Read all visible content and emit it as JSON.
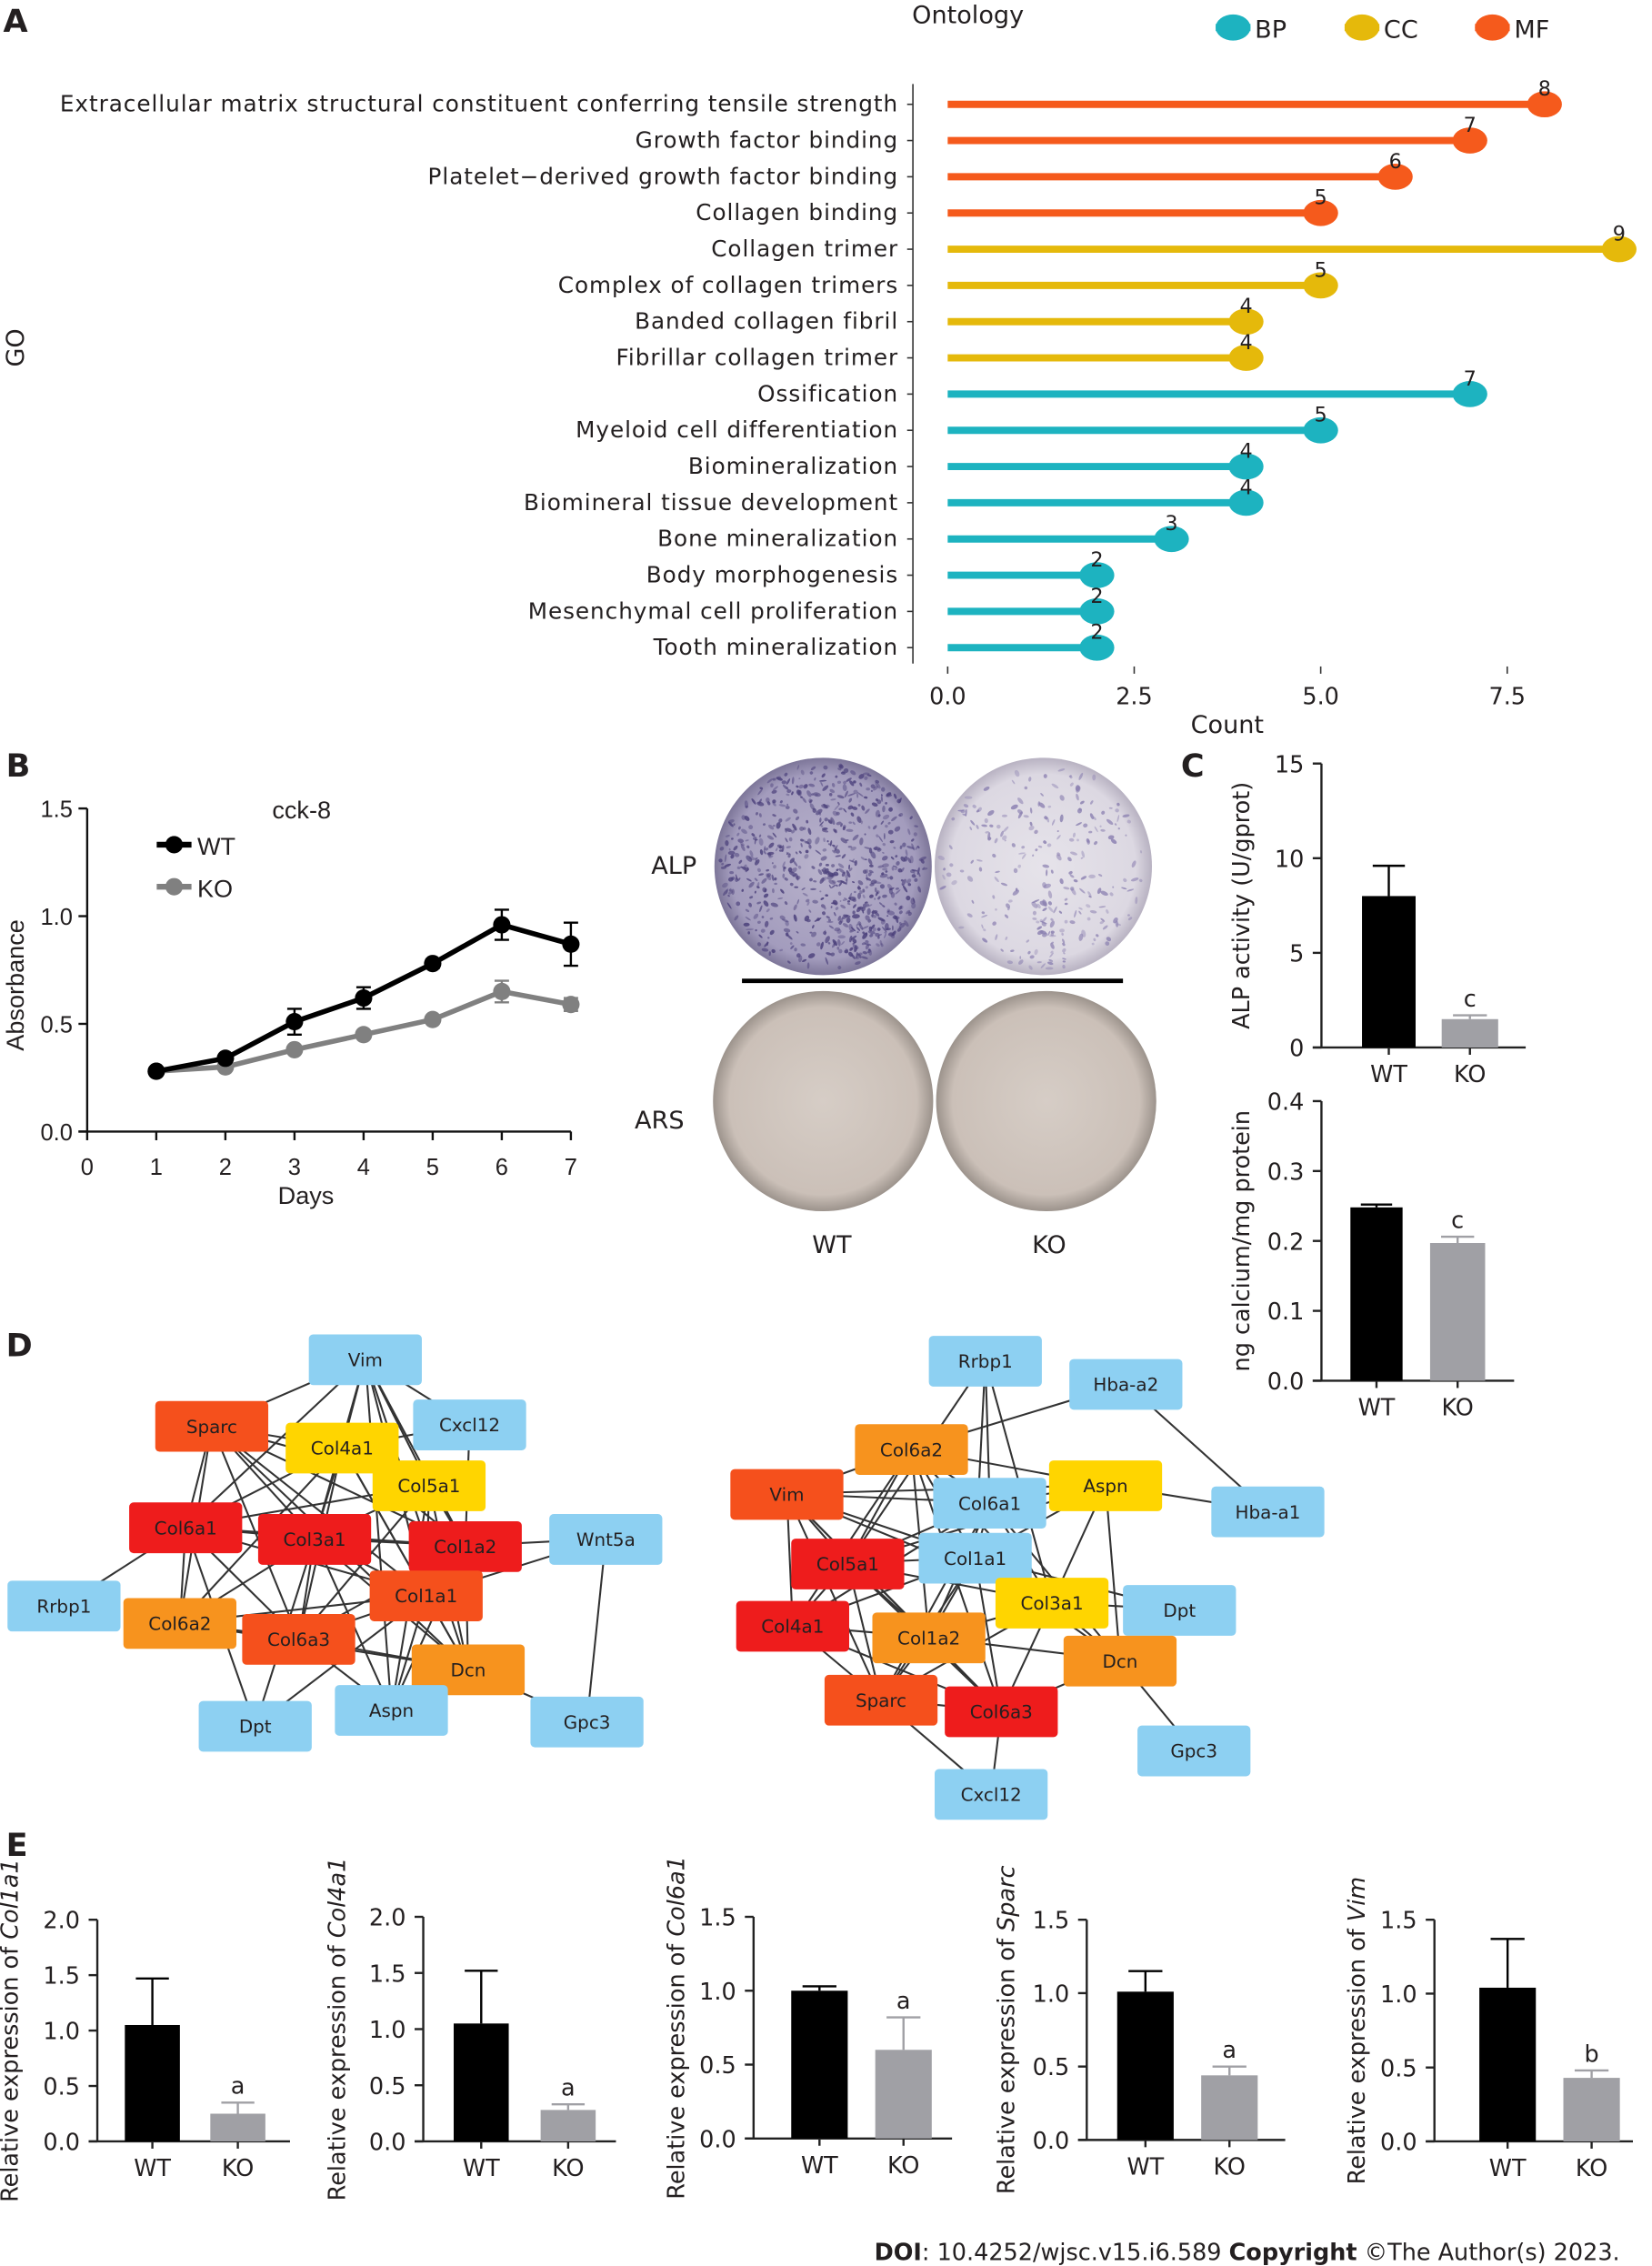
{
  "panels": {
    "a": "A",
    "b": "B",
    "c": "C",
    "d": "D",
    "e": "E"
  },
  "colors": {
    "BP": "#1db3c0",
    "CC": "#e5b90b",
    "MF": "#f55a1c",
    "wt": "#000000",
    "ko": "#a0a0a5",
    "ko_line": "#808080"
  },
  "chart_data": [
    {
      "id": "A",
      "type": "lollipop",
      "xlabel": "Count",
      "ylabel": "GO",
      "xticks": [
        0.0,
        2.5,
        5.0,
        7.5
      ],
      "xtick_labels": [
        "0.0",
        "2.5",
        "5.0",
        "7.5"
      ],
      "legend": {
        "title": "Ontology",
        "entries": [
          "BP",
          "CC",
          "MF"
        ],
        "placement": "top-right"
      },
      "terms": [
        {
          "label": "Extracellular matrix structural constituent conferring tensile strength",
          "count": 8,
          "ontology": "MF"
        },
        {
          "label": "Growth factor binding",
          "count": 7,
          "ontology": "MF"
        },
        {
          "label": "Platelet−derived growth factor binding",
          "count": 6,
          "ontology": "MF"
        },
        {
          "label": "Collagen binding",
          "count": 5,
          "ontology": "MF"
        },
        {
          "label": "Collagen trimer",
          "count": 9,
          "ontology": "CC"
        },
        {
          "label": "Complex of collagen trimers",
          "count": 5,
          "ontology": "CC"
        },
        {
          "label": "Banded collagen fibril",
          "count": 4,
          "ontology": "CC"
        },
        {
          "label": "Fibrillar collagen trimer",
          "count": 4,
          "ontology": "CC"
        },
        {
          "label": "Ossification",
          "count": 7,
          "ontology": "BP"
        },
        {
          "label": "Myeloid cell differentiation",
          "count": 5,
          "ontology": "BP"
        },
        {
          "label": "Biomineralization",
          "count": 4,
          "ontology": "BP"
        },
        {
          "label": "Biomineral tissue development",
          "count": 4,
          "ontology": "BP"
        },
        {
          "label": "Bone mineralization",
          "count": 3,
          "ontology": "BP"
        },
        {
          "label": "Body morphogenesis",
          "count": 2,
          "ontology": "BP"
        },
        {
          "label": "Mesenchymal cell proliferation",
          "count": 2,
          "ontology": "BP"
        },
        {
          "label": "Tooth mineralization",
          "count": 2,
          "ontology": "BP"
        }
      ]
    },
    {
      "id": "B",
      "type": "line",
      "title": "cck-8",
      "xlabel": "Days",
      "ylabel": "Absorbance",
      "xlim": [
        0,
        7
      ],
      "ylim": [
        0,
        1.5
      ],
      "xticks": [
        "0",
        "1",
        "2",
        "3",
        "4",
        "5",
        "6",
        "7"
      ],
      "yticks": [
        "0.0",
        "0.5",
        "1.0",
        "1.5"
      ],
      "x": [
        1,
        2,
        3,
        4,
        5,
        6,
        7
      ],
      "series": [
        {
          "name": "WT",
          "values": [
            0.28,
            0.34,
            0.51,
            0.62,
            0.78,
            0.96,
            0.87
          ],
          "errors": [
            0.01,
            0.01,
            0.06,
            0.05,
            0.02,
            0.07,
            0.1
          ]
        },
        {
          "name": "KO",
          "values": [
            0.28,
            0.3,
            0.38,
            0.45,
            0.52,
            0.65,
            0.59
          ],
          "errors": [
            0.01,
            0.01,
            0.01,
            0.01,
            0.01,
            0.05,
            0.03
          ]
        }
      ],
      "legend": "top-left"
    },
    {
      "id": "C1",
      "type": "bar",
      "ylabel": "ALP activity (U/gprot)",
      "ylim": [
        0,
        15
      ],
      "yticks": [
        "0",
        "5",
        "10",
        "15"
      ],
      "categories": [
        "WT",
        "KO"
      ],
      "values": [
        8.0,
        1.5
      ],
      "errors": [
        1.6,
        0.2
      ],
      "annotations": [
        "",
        "c"
      ]
    },
    {
      "id": "C2",
      "type": "bar",
      "ylabel": "ng calcium/mg protein",
      "ylim": [
        0,
        0.4
      ],
      "yticks": [
        "0.0",
        "0.1",
        "0.2",
        "0.3",
        "0.4"
      ],
      "categories": [
        "WT",
        "KO"
      ],
      "values": [
        0.248,
        0.197
      ],
      "errors": [
        0.004,
        0.009
      ],
      "annotations": [
        "",
        "c"
      ]
    },
    {
      "id": "E1",
      "type": "bar",
      "ylabel_prefix": "Relative expression of ",
      "gene": "Col1a1",
      "ylim": [
        0,
        2.0
      ],
      "yticks": [
        "0.0",
        "0.5",
        "1.0",
        "1.5",
        "2.0"
      ],
      "categories": [
        "WT",
        "KO"
      ],
      "values": [
        1.05,
        0.25
      ],
      "errors": [
        0.42,
        0.1
      ],
      "annotations": [
        "",
        "a"
      ]
    },
    {
      "id": "E2",
      "type": "bar",
      "ylabel_prefix": "Relative expression of ",
      "gene": "Col4a1",
      "ylim": [
        0,
        2.0
      ],
      "yticks": [
        "0.0",
        "0.5",
        "1.0",
        "1.5",
        "2.0"
      ],
      "categories": [
        "WT",
        "KO"
      ],
      "values": [
        1.05,
        0.28
      ],
      "errors": [
        0.47,
        0.05
      ],
      "annotations": [
        "",
        "a"
      ]
    },
    {
      "id": "E3",
      "type": "bar",
      "ylabel_prefix": "Relative expression of ",
      "gene": "Col6a1",
      "ylim": [
        0,
        1.5
      ],
      "yticks": [
        "0.0",
        "0.5",
        "1.0",
        "1.5"
      ],
      "categories": [
        "WT",
        "KO"
      ],
      "values": [
        1.0,
        0.6
      ],
      "errors": [
        0.03,
        0.22
      ],
      "annotations": [
        "",
        "a"
      ]
    },
    {
      "id": "E4",
      "type": "bar",
      "ylabel_prefix": "Relative expression of ",
      "gene": "Sparc",
      "ylim": [
        0,
        1.5
      ],
      "yticks": [
        "0.0",
        "0.5",
        "1.0",
        "1.5"
      ],
      "categories": [
        "WT",
        "KO"
      ],
      "values": [
        1.01,
        0.44
      ],
      "errors": [
        0.14,
        0.06
      ],
      "annotations": [
        "",
        "a"
      ]
    },
    {
      "id": "E5",
      "type": "bar",
      "ylabel_prefix": "Relative expression of ",
      "gene": "Vim",
      "ylim": [
        0,
        1.5
      ],
      "yticks": [
        "0.0",
        "0.5",
        "1.0",
        "1.5"
      ],
      "categories": [
        "WT",
        "KO"
      ],
      "values": [
        1.04,
        0.43
      ],
      "errors": [
        0.33,
        0.05
      ],
      "annotations": [
        "",
        "b"
      ]
    }
  ],
  "staining": {
    "rows": [
      "ALP",
      "ARS"
    ],
    "cols": [
      "WT",
      "KO"
    ]
  },
  "network": {
    "colors": {
      "red": "#ee1c1c",
      "orangered": "#f5501c",
      "orange": "#f7931e",
      "yellow": "#ffd500",
      "blue": "#8dd0f2"
    },
    "left": {
      "nodes": [
        {
          "id": "Vim",
          "c": "blue"
        },
        {
          "id": "Sparc",
          "c": "orangered"
        },
        {
          "id": "Col4a1",
          "c": "yellow"
        },
        {
          "id": "Cxcl12",
          "c": "blue"
        },
        {
          "id": "Col5a1",
          "c": "yellow"
        },
        {
          "id": "Col6a1",
          "c": "red"
        },
        {
          "id": "Col3a1",
          "c": "red"
        },
        {
          "id": "Col1a2",
          "c": "red"
        },
        {
          "id": "Wnt5a",
          "c": "blue"
        },
        {
          "id": "Rrbp1",
          "c": "blue"
        },
        {
          "id": "Col6a2",
          "c": "orange"
        },
        {
          "id": "Col6a3",
          "c": "orangered"
        },
        {
          "id": "Col1a1",
          "c": "orangered"
        },
        {
          "id": "Dcn",
          "c": "orange"
        },
        {
          "id": "Aspn",
          "c": "blue"
        },
        {
          "id": "Dpt",
          "c": "blue"
        },
        {
          "id": "Gpc3",
          "c": "blue"
        }
      ],
      "edges": [
        [
          "Vim",
          "Sparc"
        ],
        [
          "Vim",
          "Col4a1"
        ],
        [
          "Vim",
          "Col5a1"
        ],
        [
          "Vim",
          "Col3a1"
        ],
        [
          "Vim",
          "Col1a2"
        ],
        [
          "Vim",
          "Col6a1"
        ],
        [
          "Vim",
          "Col1a1"
        ],
        [
          "Vim",
          "Dcn"
        ],
        [
          "Vim",
          "Aspn"
        ],
        [
          "Vim",
          "Cxcl12"
        ],
        [
          "Sparc",
          "Col4a1"
        ],
        [
          "Sparc",
          "Col5a1"
        ],
        [
          "Sparc",
          "Col3a1"
        ],
        [
          "Sparc",
          "Col1a2"
        ],
        [
          "Sparc",
          "Col6a1"
        ],
        [
          "Sparc",
          "Col1a1"
        ],
        [
          "Sparc",
          "Col6a3"
        ],
        [
          "Sparc",
          "Col6a2"
        ],
        [
          "Sparc",
          "Dcn"
        ],
        [
          "Col4a1",
          "Col5a1"
        ],
        [
          "Col4a1",
          "Col3a1"
        ],
        [
          "Col4a1",
          "Col1a2"
        ],
        [
          "Col4a1",
          "Col6a1"
        ],
        [
          "Col4a1",
          "Col1a1"
        ],
        [
          "Col4a1",
          "Col6a3"
        ],
        [
          "Col4a1",
          "Col6a2"
        ],
        [
          "Col4a1",
          "Dcn"
        ],
        [
          "Col4a1",
          "Cxcl12"
        ],
        [
          "Col5a1",
          "Col3a1"
        ],
        [
          "Col5a1",
          "Col1a2"
        ],
        [
          "Col5a1",
          "Col6a1"
        ],
        [
          "Col5a1",
          "Col1a1"
        ],
        [
          "Col5a1",
          "Col6a3"
        ],
        [
          "Col5a1",
          "Dcn"
        ],
        [
          "Col5a1",
          "Aspn"
        ],
        [
          "Col6a1",
          "Col3a1"
        ],
        [
          "Col6a1",
          "Col1a2"
        ],
        [
          "Col6a1",
          "Col6a2"
        ],
        [
          "Col6a1",
          "Col6a3"
        ],
        [
          "Col6a1",
          "Col1a1"
        ],
        [
          "Col6a1",
          "Rrbp1"
        ],
        [
          "Col6a1",
          "Dpt"
        ],
        [
          "Col3a1",
          "Col1a2"
        ],
        [
          "Col3a1",
          "Col1a1"
        ],
        [
          "Col3a1",
          "Col6a2"
        ],
        [
          "Col3a1",
          "Col6a3"
        ],
        [
          "Col3a1",
          "Dcn"
        ],
        [
          "Col3a1",
          "Aspn"
        ],
        [
          "Col3a1",
          "Dpt"
        ],
        [
          "Col1a2",
          "Col1a1"
        ],
        [
          "Col1a2",
          "Dcn"
        ],
        [
          "Col1a2",
          "Wnt5a"
        ],
        [
          "Col1a2",
          "Col6a3"
        ],
        [
          "Col1a2",
          "Aspn"
        ],
        [
          "Col1a2",
          "Cxcl12"
        ],
        [
          "Col1a1",
          "Col6a2"
        ],
        [
          "Col1a1",
          "Col6a3"
        ],
        [
          "Col1a1",
          "Dcn"
        ],
        [
          "Col1a1",
          "Aspn"
        ],
        [
          "Col1a1",
          "Dpt"
        ],
        [
          "Col1a1",
          "Wnt5a"
        ],
        [
          "Col6a2",
          "Col6a3"
        ],
        [
          "Col6a2",
          "Dcn"
        ],
        [
          "Col6a3",
          "Dcn"
        ],
        [
          "Col6a3",
          "Aspn"
        ],
        [
          "Dcn",
          "Aspn"
        ],
        [
          "Wnt5a",
          "Gpc3"
        ],
        [
          "Dcn",
          "Gpc3"
        ]
      ]
    },
    "right": {
      "nodes": [
        {
          "id": "Rrbp1",
          "c": "blue"
        },
        {
          "id": "Hba-a2",
          "c": "blue"
        },
        {
          "id": "Col6a2",
          "c": "orange"
        },
        {
          "id": "Vim",
          "c": "orangered"
        },
        {
          "id": "Col6a1",
          "c": "blue"
        },
        {
          "id": "Aspn",
          "c": "yellow"
        },
        {
          "id": "Hba-a1",
          "c": "blue"
        },
        {
          "id": "Col5a1",
          "c": "red"
        },
        {
          "id": "Col1a1",
          "c": "blue"
        },
        {
          "id": "Col3a1",
          "c": "yellow"
        },
        {
          "id": "Dpt",
          "c": "blue"
        },
        {
          "id": "Col4a1",
          "c": "red"
        },
        {
          "id": "Col1a2",
          "c": "orange"
        },
        {
          "id": "Dcn",
          "c": "orange"
        },
        {
          "id": "Sparc",
          "c": "orangered"
        },
        {
          "id": "Col6a3",
          "c": "red"
        },
        {
          "id": "Gpc3",
          "c": "blue"
        },
        {
          "id": "Cxcl12",
          "c": "blue"
        }
      ],
      "edges": [
        [
          "Rrbp1",
          "Col6a1"
        ],
        [
          "Rrbp1",
          "Col1a1"
        ],
        [
          "Rrbp1",
          "Col5a1"
        ],
        [
          "Rrbp1",
          "Col3a1"
        ],
        [
          "Hba-a2",
          "Hba-a1"
        ],
        [
          "Hba-a2",
          "Col6a2"
        ],
        [
          "Col6a2",
          "Vim"
        ],
        [
          "Col6a2",
          "Col6a1"
        ],
        [
          "Col6a2",
          "Col5a1"
        ],
        [
          "Col6a2",
          "Col1a1"
        ],
        [
          "Col6a2",
          "Col3a1"
        ],
        [
          "Col6a2",
          "Col4a1"
        ],
        [
          "Col6a2",
          "Col1a2"
        ],
        [
          "Col6a2",
          "Col6a3"
        ],
        [
          "Col6a2",
          "Aspn"
        ],
        [
          "Vim",
          "Col6a1"
        ],
        [
          "Vim",
          "Col5a1"
        ],
        [
          "Vim",
          "Col1a1"
        ],
        [
          "Vim",
          "Col4a1"
        ],
        [
          "Vim",
          "Col1a2"
        ],
        [
          "Vim",
          "Sparc"
        ],
        [
          "Vim",
          "Col3a1"
        ],
        [
          "Vim",
          "Col6a3"
        ],
        [
          "Vim",
          "Aspn"
        ],
        [
          "Col6a1",
          "Aspn"
        ],
        [
          "Col6a1",
          "Col5a1"
        ],
        [
          "Col6a1",
          "Col1a1"
        ],
        [
          "Col6a1",
          "Col3a1"
        ],
        [
          "Col6a1",
          "Col4a1"
        ],
        [
          "Col6a1",
          "Col1a2"
        ],
        [
          "Col6a1",
          "Dcn"
        ],
        [
          "Col6a1",
          "Sparc"
        ],
        [
          "Aspn",
          "Col1a1"
        ],
        [
          "Aspn",
          "Col3a1"
        ],
        [
          "Aspn",
          "Dcn"
        ],
        [
          "Aspn",
          "Hba-a1"
        ],
        [
          "Aspn",
          "Col5a1"
        ],
        [
          "Col5a1",
          "Col1a1"
        ],
        [
          "Col5a1",
          "Col4a1"
        ],
        [
          "Col5a1",
          "Col1a2"
        ],
        [
          "Col5a1",
          "Sparc"
        ],
        [
          "Col5a1",
          "Col6a3"
        ],
        [
          "Col5a1",
          "Col3a1"
        ],
        [
          "Col1a1",
          "Col3a1"
        ],
        [
          "Col1a1",
          "Col4a1"
        ],
        [
          "Col1a1",
          "Col1a2"
        ],
        [
          "Col1a1",
          "Sparc"
        ],
        [
          "Col1a1",
          "Col6a3"
        ],
        [
          "Col1a1",
          "Dcn"
        ],
        [
          "Col1a1",
          "Dpt"
        ],
        [
          "Col3a1",
          "Col1a2"
        ],
        [
          "Col3a1",
          "Dcn"
        ],
        [
          "Col3a1",
          "Col6a3"
        ],
        [
          "Col3a1",
          "Dpt"
        ],
        [
          "Col3a1",
          "Sparc"
        ],
        [
          "Col4a1",
          "Col1a2"
        ],
        [
          "Col4a1",
          "Sparc"
        ],
        [
          "Col4a1",
          "Col6a3"
        ],
        [
          "Col1a2",
          "Sparc"
        ],
        [
          "Col1a2",
          "Col6a3"
        ],
        [
          "Col1a2",
          "Dcn"
        ],
        [
          "Sparc",
          "Col6a3"
        ],
        [
          "Sparc",
          "Cxcl12"
        ],
        [
          "Col6a3",
          "Dcn"
        ],
        [
          "Col6a3",
          "Cxcl12"
        ],
        [
          "Dcn",
          "Gpc3"
        ]
      ]
    }
  },
  "footer": {
    "doi_label": "DOI",
    "doi_text": ": 10.4252/wjsc.v15.i6.589 ",
    "copyright_label": "Copyright",
    "copyright_text": " ©The Author(s) 2023."
  }
}
